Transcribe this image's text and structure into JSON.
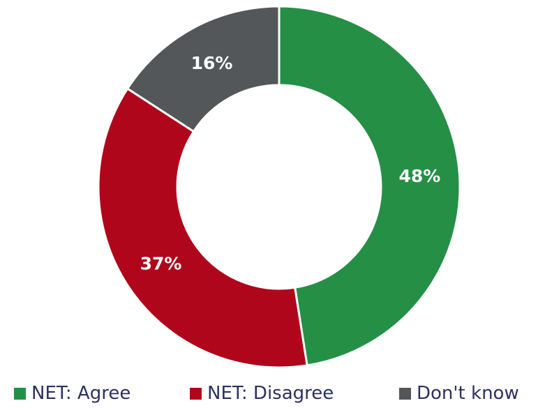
{
  "chart_data": {
    "type": "pie",
    "donut": true,
    "categories": [
      "NET: Agree",
      "NET: Disagree",
      "Don't know"
    ],
    "values": [
      48,
      37,
      16
    ],
    "labels": [
      "48%",
      "37%",
      "16%"
    ],
    "colors": [
      "#258f46",
      "#b0061b",
      "#535759"
    ],
    "legend_position": "bottom"
  }
}
